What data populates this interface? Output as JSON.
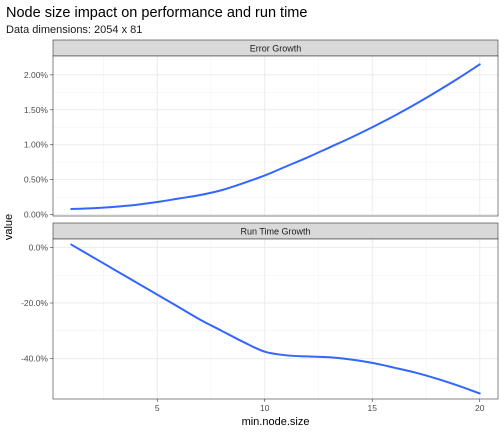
{
  "chart_data": {
    "type": "line",
    "title": "Node size impact on performance and run time",
    "subtitle": "Data dimensions: 2054 x 81",
    "xlabel": "min.node.size",
    "ylabel": "value",
    "xlim": [
      0.15,
      20.85
    ],
    "x_ticks": [
      5,
      10,
      15,
      20
    ],
    "x_tick_labels": [
      "5",
      "10",
      "15",
      "20"
    ],
    "grid": true,
    "legend": "none",
    "line_color": "#3366ff",
    "panels": [
      {
        "strip_label": "Error Growth",
        "ylim": [
          -0.0002,
          0.0227
        ],
        "y_ticks": [
          0,
          0.005,
          0.01,
          0.015,
          0.02
        ],
        "y_tick_labels": [
          "0.00%",
          "0.50%",
          "1.00%",
          "1.50%",
          "2.00%"
        ],
        "x": [
          1,
          2,
          3,
          4,
          5,
          6,
          7,
          8,
          9,
          10,
          11,
          12,
          13,
          14,
          15,
          16,
          17,
          18,
          19,
          20
        ],
        "values": [
          0.0008,
          0.0009,
          0.0011,
          0.0014,
          0.0018,
          0.0023,
          0.0028,
          0.0035,
          0.0045,
          0.0056,
          0.0069,
          0.0082,
          0.0096,
          0.011,
          0.0125,
          0.0141,
          0.0158,
          0.0176,
          0.0195,
          0.0215
        ]
      },
      {
        "strip_label": "Run Time Growth",
        "ylim": [
          -0.545,
          0.03
        ],
        "y_ticks": [
          0,
          -0.2,
          -0.4
        ],
        "y_tick_labels": [
          "0.0%",
          "-20.0%",
          "-40.0%"
        ],
        "x": [
          1,
          2,
          3,
          4,
          5,
          6,
          7,
          8,
          9,
          10,
          11,
          12,
          13,
          14,
          15,
          16,
          17,
          18,
          19,
          20
        ],
        "values": [
          0.01,
          -0.035,
          -0.08,
          -0.125,
          -0.17,
          -0.215,
          -0.26,
          -0.3,
          -0.34,
          -0.375,
          -0.388,
          -0.392,
          -0.395,
          -0.403,
          -0.415,
          -0.432,
          -0.45,
          -0.472,
          -0.497,
          -0.525
        ]
      }
    ]
  }
}
